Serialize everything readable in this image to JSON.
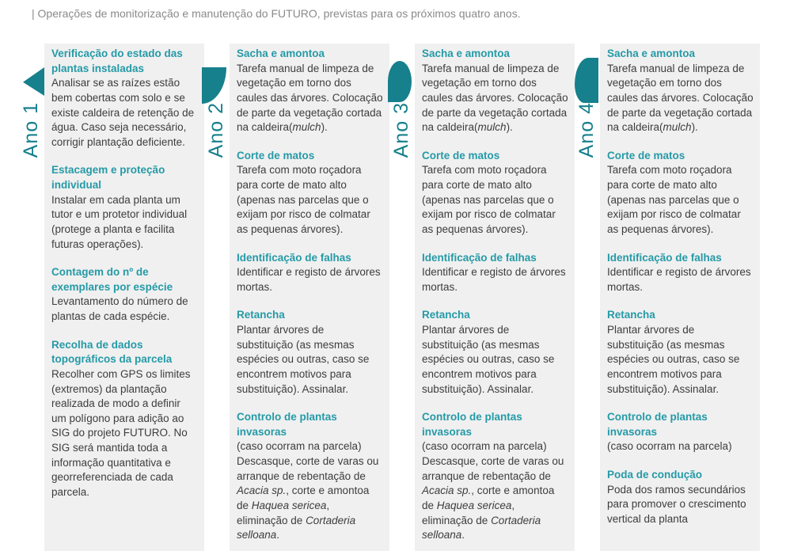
{
  "title": "| Operações de monitorização e manutenção do FUTURO, previstas para os próximos quatro anos.",
  "colors": {
    "shape_teal": "#16808c",
    "heading_teal": "#259aa7",
    "body_text": "#3d3d3d",
    "panel_bg": "#f0f0f0",
    "title_gray": "#8a8a8a"
  },
  "italic_terms": [
    "mulch",
    "Acacia sp.",
    "Haquea sericea",
    "Cortaderia selloana"
  ],
  "columns": [
    {
      "year_label": "Ano 1",
      "shape_icon": "leaf-triangle-icon",
      "sections": [
        {
          "heading": "Verificação do estado das plantas instaladas",
          "body": "Analisar se as raízes estão bem cobertas com solo e se existe caldeira de retenção de água. Caso seja necessário, corrigir plantação deficiente."
        },
        {
          "heading": "Estacagem e proteção individual",
          "body": "Instalar em cada planta um tutor e um protetor individual (protege a planta e facilita futuras operações)."
        },
        {
          "heading": "Contagem do nº de exemplares por espécie",
          "body": "Levantamento do número de plantas de cada espécie."
        },
        {
          "heading": "Recolha de dados topográficos da parcela",
          "body": "Recolher com GPS os limites (extremos) da plantação realizada de modo a definir um polígono para adição ao SIG do projeto FUTURO. No SIG será mantida toda a informação quantitativa e georreferenciada de cada parcela."
        }
      ]
    },
    {
      "year_label": "Ano 2",
      "shape_icon": "leaf-quarter-icon",
      "sections": [
        {
          "heading": "Sacha e amontoa",
          "body": "Tarefa manual de limpeza de vegetação em torno dos caules das árvores. Colocação de parte da vegetação cortada na caldeira(mulch)."
        },
        {
          "heading": "Corte de matos",
          "body": "Tarefa com moto roçadora para corte de mato alto (apenas nas parcelas que o exijam por risco de colmatar as pequenas árvores)."
        },
        {
          "heading": "Identificação de falhas",
          "body": "Identificar e registo de árvores mortas."
        },
        {
          "heading": "Retancha",
          "body": "Plantar árvores de substituição (as mesmas espécies ou outras, caso se encontrem motivos para substituição). Assinalar."
        },
        {
          "heading": "Controlo de plantas invasoras",
          "body": "(caso ocorram na parcela) Descasque, corte de varas ou arranque de rebentação de Acacia sp., corte e amontoa de Haquea sericea, eliminação de Cortaderia selloana."
        }
      ]
    },
    {
      "year_label": "Ano 3",
      "shape_icon": "leaf-round-point-icon",
      "sections": [
        {
          "heading": "Sacha e amontoa",
          "body": "Tarefa manual de limpeza de vegetação em torno dos caules das árvores. Colocação de parte da vegetação cortada na caldeira(mulch)."
        },
        {
          "heading": "Corte de matos",
          "body": "Tarefa com moto roçadora para corte de mato alto (apenas nas parcelas que o exijam por risco de colmatar as pequenas árvores)."
        },
        {
          "heading": "Identificação de falhas",
          "body": "Identificar e registo de árvores mortas."
        },
        {
          "heading": "Retancha",
          "body": "Plantar árvores de substituição (as mesmas espécies ou outras, caso se encontrem motivos para substituição). Assinalar."
        },
        {
          "heading": "Controlo de plantas invasoras",
          "body": "(caso ocorram na parcela) Descasque, corte de varas ou arranque de rebentação de Acacia sp., corte e amontoa de Haquea sericea, eliminação de Cortaderia selloana."
        }
      ]
    },
    {
      "year_label": "Ano 4",
      "shape_icon": "leaf-dome-icon",
      "sections": [
        {
          "heading": "Sacha e amontoa",
          "body": "Tarefa manual de limpeza de vegetação em torno dos caules das árvores. Colocação de parte da vegetação cortada na caldeira(mulch)."
        },
        {
          "heading": "Corte de matos",
          "body": "Tarefa com moto roçadora para corte de mato alto (apenas nas parcelas que o exijam por risco de colmatar as pequenas árvores)."
        },
        {
          "heading": "Identificação de falhas",
          "body": "Identificar e registo de árvores mortas."
        },
        {
          "heading": "Retancha",
          "body": "Plantar árvores de substituição (as mesmas espécies ou outras, caso se encontrem motivos para substituição). Assinalar."
        },
        {
          "heading": "Controlo de plantas invasoras",
          "body": "(caso ocorram na parcela)"
        },
        {
          "heading": "Poda de condução",
          "body": "Poda dos ramos secundários para promover o crescimento vertical da planta"
        }
      ]
    }
  ]
}
